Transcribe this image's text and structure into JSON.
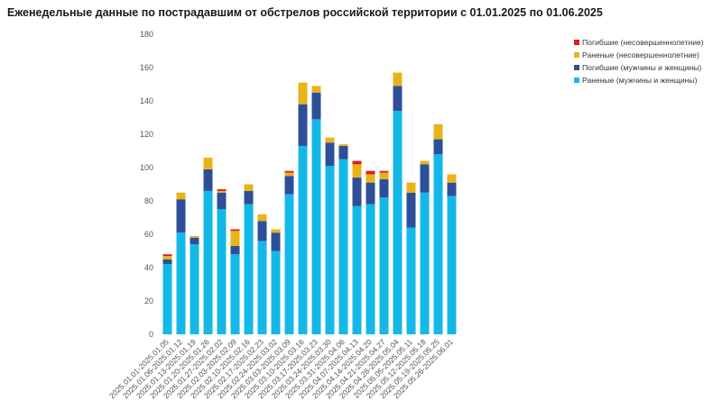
{
  "chart_data": {
    "type": "bar",
    "stacked": true,
    "title": "Еженедельные данные по пострадавшим от обстрелов российской территории с 01.01.2025 по 01.06.2025",
    "xlabel": "",
    "ylabel": "",
    "ylim": [
      0,
      180
    ],
    "yticks": [
      0,
      20,
      40,
      60,
      80,
      100,
      120,
      140,
      160,
      180
    ],
    "grid": false,
    "legend_position": "top-right",
    "categories": [
      "2025.01.01-2025.01.05",
      "2025.01.06-2025.01.12",
      "2025.01.13-2025.01.19",
      "2025.01.20-2025.01.26",
      "2025.01.27-2025.02.02",
      "2025.02.03-2025.02.09",
      "2025.02.10-2025.02.16",
      "2025.02.17-2025.02.23",
      "2025.02.24-2025.03.02",
      "2025.03.03-2025.03.09",
      "2025.03.10-2025.03.16",
      "2025.03.17-2025.03.23",
      "2025.03.24-2025.03.30",
      "2025.03.31-2025.04.06",
      "2025.04.07-2025.04.13",
      "2025.04.14-2025.04.20",
      "2025.04.21-2025.04.27",
      "2025.04.28-2025.05.04",
      "2025.05.05-2025.05.11",
      "2025.05.12-2025.05.18",
      "2025.05.19-2025.05.25",
      "2025.05.26-2025.06.01"
    ],
    "series": [
      {
        "name": "Раненые (мужчины и женщины)",
        "color": "#14b8e6",
        "values": [
          42,
          61,
          54,
          86,
          75,
          48,
          78,
          56,
          50,
          84,
          113,
          129,
          101,
          105,
          77,
          78,
          82,
          134,
          64,
          85,
          108,
          83
        ]
      },
      {
        "name": "Погибшие (мужчины и женщины)",
        "color": "#2e4f98",
        "values": [
          3,
          20,
          4,
          13,
          10,
          5,
          8,
          12,
          11,
          11,
          25,
          16,
          14,
          8,
          17,
          13,
          11,
          15,
          21,
          17,
          9,
          8
        ]
      },
      {
        "name": "Раненые (несовершеннолетние)",
        "color": "#e8b418",
        "values": [
          2,
          4,
          1,
          7,
          1,
          9,
          4,
          4,
          2,
          2,
          13,
          4,
          3,
          1,
          8,
          5,
          4,
          8,
          6,
          2,
          9,
          5
        ]
      },
      {
        "name": "Погибшие (несовершеннолетние)",
        "color": "#e01b1b",
        "values": [
          1,
          0,
          0,
          0,
          1,
          1,
          0,
          0,
          0,
          1,
          0,
          0,
          0,
          0,
          2,
          2,
          1,
          0,
          0,
          0,
          0,
          0
        ]
      }
    ],
    "legend_order": [
      "Погибшие (несовершеннолетние)",
      "Раненые (несовершеннолетние)",
      "Погибшие (мужчины и женщины)",
      "Раненые (мужчины и женщины)"
    ]
  }
}
